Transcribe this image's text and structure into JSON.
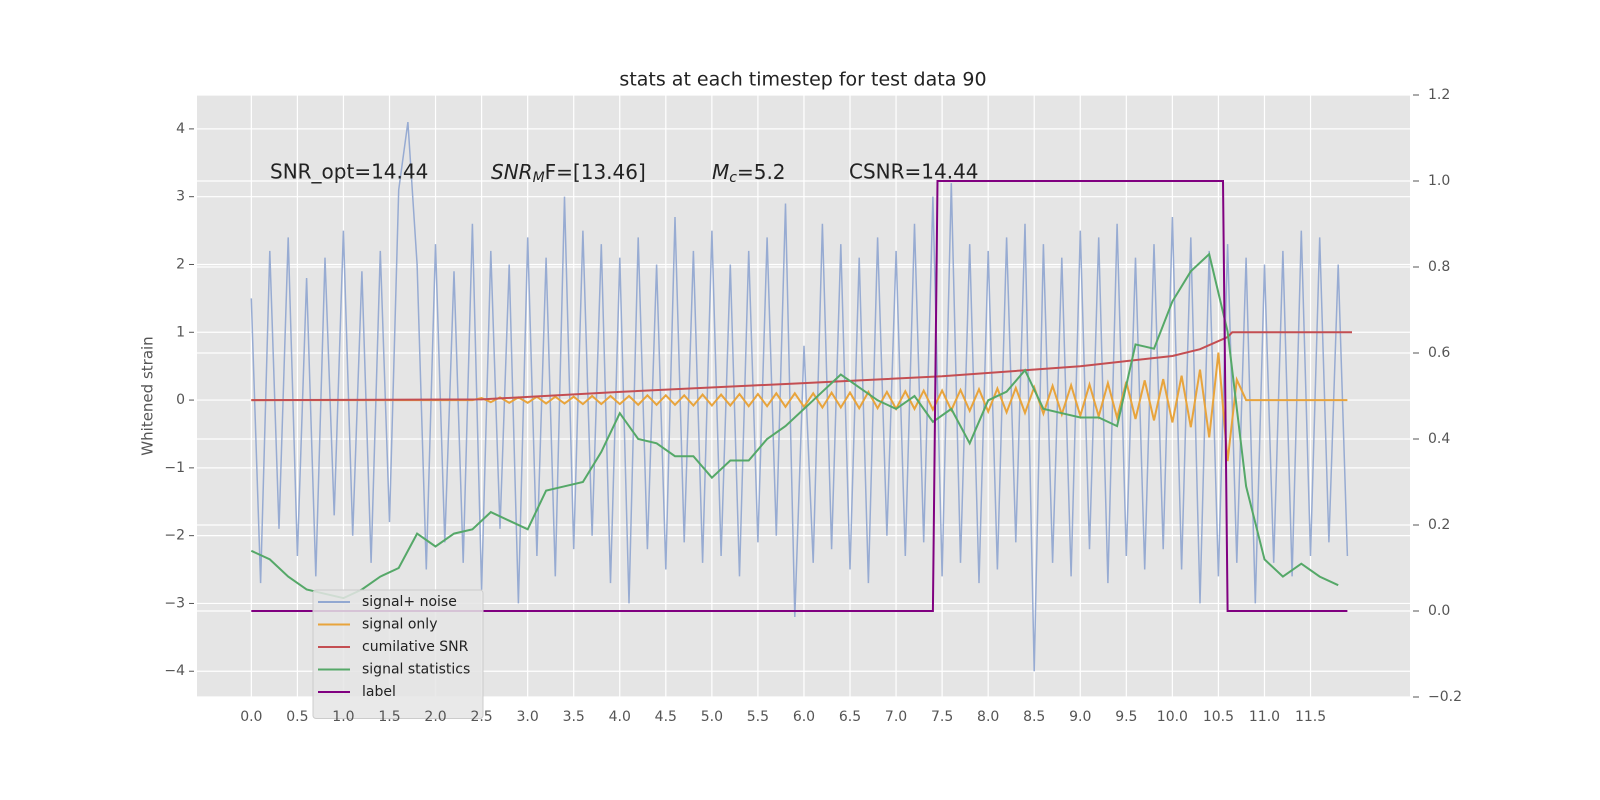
{
  "chart_data": {
    "type": "line",
    "title": "stats at each timestep for test data 90",
    "ylabel": "Whitened strain",
    "annotations": [
      "SNR_opt=14.44",
      {
        "main": "SNR",
        "sub": "M",
        "rest": "F=[13.46]"
      },
      {
        "main": "M",
        "sub": "c",
        "rest": "=5.2"
      },
      "CSNR=14.44"
    ],
    "xlim": [
      -0.59,
      12.58
    ],
    "ylim": [
      -4.38,
      4.5
    ],
    "y2lim": [
      -0.2,
      1.2
    ],
    "xticks": [
      {
        "value": 0,
        "label": "0.0"
      },
      0.5,
      {
        "value": 1,
        "label": "1.0"
      },
      1.5,
      {
        "value": 2,
        "label": "2.0"
      },
      2.5,
      {
        "value": 3,
        "label": "3.0"
      },
      3.5,
      {
        "value": 4,
        "label": "4.0"
      },
      4.5,
      {
        "value": 5,
        "label": "5.0"
      },
      5.5,
      {
        "value": 6,
        "label": "6.0"
      },
      6.5,
      {
        "value": 7,
        "label": "7.0"
      },
      7.5,
      {
        "value": 8,
        "label": "8.0"
      },
      8.5,
      {
        "value": 9,
        "label": "9.0"
      },
      9.5,
      {
        "value": 10,
        "label": "10.0"
      },
      10.5,
      {
        "value": 11,
        "label": "11.0"
      },
      11.5
    ],
    "yticks": [
      {
        "value": -4,
        "label": "−4"
      },
      {
        "value": -3,
        "label": "−3"
      },
      {
        "value": -2,
        "label": "−2"
      },
      {
        "value": -1,
        "label": "−1"
      },
      0,
      1,
      2,
      3,
      4
    ],
    "y2ticks": [
      {
        "value": -0.2,
        "label": "−0.2"
      },
      {
        "value": 0,
        "label": "0.0"
      },
      0.2,
      0.4,
      0.6,
      0.8,
      {
        "value": 1,
        "label": "1.0"
      },
      1.2
    ],
    "grid": true,
    "legend": "lower left",
    "x": [
      0,
      0.1,
      0.2,
      0.3,
      0.4,
      0.5,
      0.6,
      0.7,
      0.8,
      0.9,
      1,
      1.1,
      1.2,
      1.3,
      1.4,
      1.5,
      1.6,
      1.7,
      1.8,
      1.9,
      2,
      2.1,
      2.2,
      2.3,
      2.4,
      2.5,
      2.6,
      2.7,
      2.8,
      2.9,
      3,
      3.1,
      3.2,
      3.3,
      3.4,
      3.5,
      3.6,
      3.7,
      3.8,
      3.9,
      4,
      4.1,
      4.2,
      4.3,
      4.4,
      4.5,
      4.6,
      4.7,
      4.8,
      4.9,
      5,
      5.1,
      5.2,
      5.3,
      5.4,
      5.5,
      5.6,
      5.7,
      5.8,
      5.9,
      6,
      6.1,
      6.2,
      6.3,
      6.4,
      6.5,
      6.6,
      6.7,
      6.8,
      6.9,
      7,
      7.1,
      7.2,
      7.3,
      7.4,
      7.5,
      7.6,
      7.7,
      7.8,
      7.9,
      8,
      8.1,
      8.2,
      8.3,
      8.4,
      8.5,
      8.6,
      8.7,
      8.8,
      8.9,
      9,
      9.1,
      9.2,
      9.3,
      9.4,
      9.5,
      9.6,
      9.7,
      9.8,
      9.9,
      10,
      10.1,
      10.2,
      10.3,
      10.4,
      10.5,
      10.6,
      10.7,
      10.8,
      10.9,
      11,
      11.1,
      11.2,
      11.3,
      11.4,
      11.5,
      11.6,
      11.7,
      11.8,
      11.9
    ],
    "series": [
      {
        "name": "signal+ noise",
        "color": "#92a8d1",
        "values": [
          1.5,
          -2.7,
          2.2,
          -1.9,
          2.4,
          -2.3,
          1.8,
          -2.6,
          2.1,
          -1.7,
          2.5,
          -2.0,
          1.9,
          -2.4,
          2.2,
          -1.8,
          3.1,
          4.1,
          2.0,
          -2.5,
          2.3,
          -2.1,
          1.9,
          -2.4,
          2.6,
          -2.8,
          2.2,
          -1.9,
          2.0,
          -3.0,
          2.4,
          -2.3,
          2.1,
          -2.6,
          3.0,
          -2.2,
          2.5,
          -2.0,
          2.3,
          -2.7,
          2.1,
          -3.0,
          2.4,
          -2.2,
          2.0,
          -2.5,
          2.7,
          -2.1,
          2.2,
          -2.4,
          2.5,
          -2.3,
          2.0,
          -2.6,
          2.2,
          -2.1,
          2.4,
          -2.0,
          2.9,
          -3.2,
          0.8,
          -2.4,
          2.6,
          -2.2,
          2.3,
          -2.5,
          2.1,
          -2.7,
          2.4,
          -2.0,
          2.2,
          -2.3,
          2.6,
          -2.1,
          3.0,
          -2.6,
          3.2,
          -2.4,
          2.3,
          -2.7,
          2.2,
          -2.5,
          2.4,
          -2.1,
          2.6,
          -4.0,
          2.3,
          -2.4,
          2.1,
          -2.6,
          2.5,
          -2.2,
          2.4,
          -2.7,
          2.6,
          -2.3,
          2.1,
          -2.5,
          2.3,
          -2.2,
          2.7,
          -2.5,
          2.4,
          -3.0,
          2.2,
          -2.6,
          2.3,
          -2.4,
          2.1,
          -3.0,
          2.0,
          -2.4,
          2.2,
          -2.6,
          2.5,
          -2.3,
          2.4,
          -2.1,
          2.0,
          -2.3
        ]
      },
      {
        "name": "signal only",
        "color": "#e8a43c",
        "values": [
          0,
          0,
          0,
          0,
          0,
          0,
          0,
          0,
          0,
          0,
          0,
          0,
          0,
          0,
          0,
          0,
          0,
          0,
          0,
          0,
          0,
          0,
          0,
          0,
          0,
          0.03,
          -0.03,
          0.04,
          -0.04,
          0.04,
          -0.04,
          0.05,
          -0.05,
          0.05,
          -0.05,
          0.05,
          -0.06,
          0.06,
          -0.06,
          0.06,
          -0.06,
          0.06,
          -0.07,
          0.07,
          -0.07,
          0.07,
          -0.07,
          0.07,
          -0.08,
          0.08,
          -0.08,
          0.08,
          -0.08,
          0.09,
          -0.09,
          0.09,
          -0.09,
          0.1,
          -0.1,
          0.1,
          -0.1,
          0.1,
          -0.11,
          0.11,
          -0.11,
          0.11,
          -0.12,
          0.12,
          -0.12,
          0.12,
          -0.13,
          0.13,
          -0.13,
          0.14,
          -0.14,
          0.14,
          -0.15,
          0.15,
          -0.16,
          0.16,
          -0.17,
          0.17,
          -0.18,
          0.18,
          -0.19,
          0.19,
          -0.2,
          0.21,
          -0.21,
          0.22,
          -0.23,
          0.23,
          -0.24,
          0.25,
          -0.26,
          0.27,
          -0.28,
          0.29,
          -0.3,
          0.31,
          -0.33,
          0.36,
          -0.4,
          0.45,
          -0.55,
          0.7,
          -0.9,
          0.3,
          0,
          0,
          0,
          0,
          0,
          0,
          0,
          0,
          0,
          0,
          0,
          0
        ]
      },
      {
        "name": "cumilative SNR",
        "color": "#c44e52",
        "x": [
          0,
          2.5,
          4,
          6,
          7.5,
          9,
          10,
          10.3,
          10.6,
          10.65,
          11.95
        ],
        "values": [
          0,
          0.01,
          0.12,
          0.25,
          0.35,
          0.5,
          0.65,
          0.75,
          0.93,
          1.0,
          1.0
        ]
      },
      {
        "name": "signal statistics",
        "color": "#55a868",
        "axis": "y2",
        "x": [
          0,
          0.2,
          0.4,
          0.6,
          0.8,
          1,
          1.2,
          1.4,
          1.6,
          1.8,
          2,
          2.2,
          2.4,
          2.6,
          2.8,
          3,
          3.2,
          3.4,
          3.6,
          3.8,
          4,
          4.2,
          4.4,
          4.6,
          4.8,
          5,
          5.2,
          5.4,
          5.6,
          5.8,
          6,
          6.2,
          6.4,
          6.6,
          6.8,
          7,
          7.2,
          7.4,
          7.6,
          7.8,
          8,
          8.2,
          8.4,
          8.6,
          8.8,
          9,
          9.2,
          9.4,
          9.6,
          9.8,
          10,
          10.2,
          10.4,
          10.6,
          10.8,
          11,
          11.2,
          11.4,
          11.6,
          11.8
        ],
        "values": [
          0.14,
          0.12,
          0.08,
          0.05,
          0.04,
          0.03,
          0.05,
          0.08,
          0.1,
          0.18,
          0.15,
          0.18,
          0.19,
          0.23,
          0.21,
          0.19,
          0.28,
          0.29,
          0.3,
          0.37,
          0.46,
          0.4,
          0.39,
          0.36,
          0.36,
          0.31,
          0.35,
          0.35,
          0.4,
          0.43,
          0.47,
          0.51,
          0.55,
          0.52,
          0.49,
          0.47,
          0.5,
          0.44,
          0.47,
          0.39,
          0.49,
          0.51,
          0.56,
          0.47,
          0.46,
          0.45,
          0.45,
          0.43,
          0.62,
          0.61,
          0.72,
          0.79,
          0.83,
          0.65,
          0.29,
          0.12,
          0.08,
          0.11,
          0.08,
          0.06
        ]
      },
      {
        "name": "label",
        "color": "#800080",
        "axis": "y2",
        "x": [
          0,
          7.4,
          7.45,
          10.55,
          10.6,
          11.9
        ],
        "values": [
          0,
          0,
          1,
          1,
          0,
          0
        ]
      }
    ]
  }
}
